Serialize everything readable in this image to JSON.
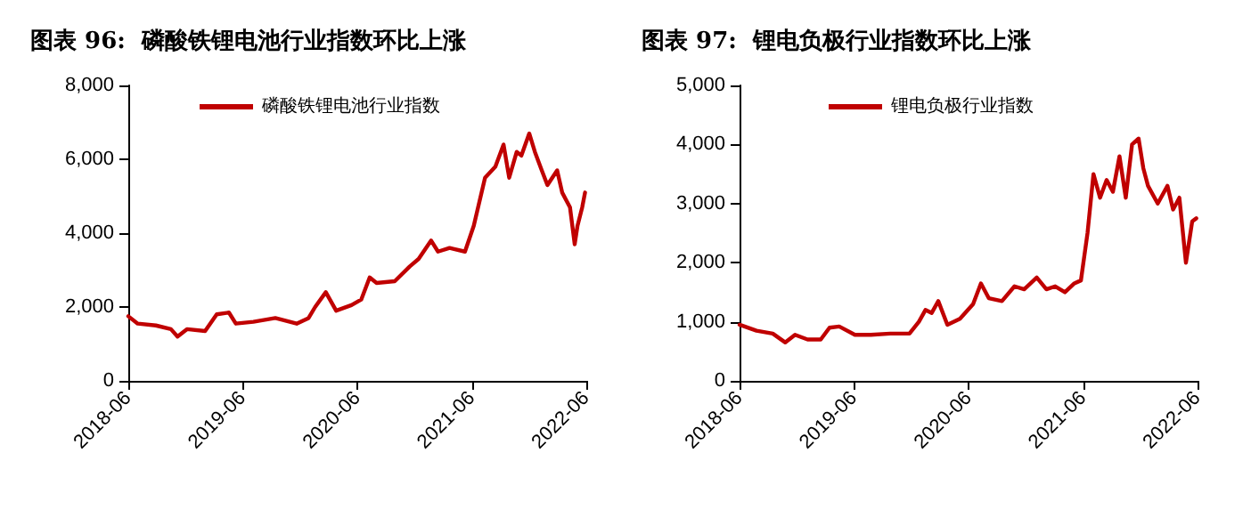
{
  "chart_data": [
    {
      "type": "line",
      "title": "图表 96:  磷酸铁锂电池行业指数环比上涨",
      "legend": "top",
      "grid": false,
      "marker": "none",
      "line_style": "solid",
      "xlim": [
        "2018-06",
        "2022-06"
      ],
      "xticks": [
        "2018-06",
        "2019-06",
        "2020-06",
        "2021-06",
        "2022-06"
      ],
      "ylim": [
        0,
        8000
      ],
      "yticks": [
        0,
        {
          "value": 2000,
          "label": "2,000"
        },
        {
          "value": 4000,
          "label": "4,000"
        },
        {
          "value": 6000,
          "label": "6,000"
        },
        {
          "value": 8000,
          "label": "8,000"
        }
      ],
      "series": [
        {
          "name": "磷酸铁锂电池行业指数",
          "color": "#c00000",
          "x": [
            "2018-06-01",
            "2018-07-01",
            "2018-08-28",
            "2018-10-15",
            "2018-11-05",
            "2018-12-05",
            "2019-02-01",
            "2019-03-10",
            "2019-04-18",
            "2019-05-10",
            "2019-07-05",
            "2019-09-13",
            "2019-11-20",
            "2019-12-28",
            "2020-01-18",
            "2020-02-21",
            "2020-03-25",
            "2020-05-13",
            "2020-06-13",
            "2020-07-10",
            "2020-08-01",
            "2020-09-28",
            "2020-11-15",
            "2020-12-13",
            "2021-01-22",
            "2021-02-13",
            "2021-03-22",
            "2021-05-10",
            "2021-06-07",
            "2021-07-13",
            "2021-08-15",
            "2021-09-10",
            "2021-09-28",
            "2021-10-22",
            "2021-11-06",
            "2021-12-01",
            "2021-12-19",
            "2022-01-10",
            "2022-01-28",
            "2022-02-28",
            "2022-03-16",
            "2022-04-10",
            "2022-04-25",
            "2022-05-04",
            "2022-05-19",
            "2022-05-28"
          ],
          "values": [
            1750,
            1550,
            1500,
            1400,
            1200,
            1400,
            1350,
            1800,
            1850,
            1550,
            1600,
            1700,
            1550,
            1700,
            2000,
            2400,
            1900,
            2050,
            2200,
            2800,
            2650,
            2700,
            3100,
            3300,
            3800,
            3500,
            3600,
            3500,
            4200,
            5500,
            5800,
            6400,
            5500,
            6200,
            6100,
            6700,
            6200,
            5700,
            5300,
            5700,
            5100,
            4700,
            3700,
            4200,
            4700,
            5100
          ]
        }
      ]
    },
    {
      "type": "line",
      "title": "图表 97:  锂电负极行业指数环比上涨",
      "legend": "top",
      "grid": false,
      "marker": "none",
      "line_style": "solid",
      "xlim": [
        "2018-06",
        "2022-06"
      ],
      "xticks": [
        "2018-06",
        "2019-06",
        "2020-06",
        "2021-06",
        "2022-06"
      ],
      "ylim": [
        0,
        5000
      ],
      "yticks": [
        0,
        {
          "value": 1000,
          "label": "1,000"
        },
        {
          "value": 2000,
          "label": "2,000"
        },
        {
          "value": 3000,
          "label": "3,000"
        },
        {
          "value": 4000,
          "label": "4,000"
        },
        {
          "value": 5000,
          "label": "5,000"
        }
      ],
      "series": [
        {
          "name": "锂电负极行业指数",
          "color": "#c00000",
          "x": [
            "2018-06-01",
            "2018-07-25",
            "2018-09-15",
            "2018-10-25",
            "2018-11-25",
            "2019-01-04",
            "2019-02-15",
            "2019-03-15",
            "2019-04-15",
            "2019-06-04",
            "2019-07-25",
            "2019-09-25",
            "2019-11-25",
            "2019-12-25",
            "2020-01-15",
            "2020-02-04",
            "2020-02-25",
            "2020-03-25",
            "2020-05-04",
            "2020-06-15",
            "2020-07-10",
            "2020-08-04",
            "2020-09-15",
            "2020-10-25",
            "2020-11-25",
            "2021-01-04",
            "2021-02-04",
            "2021-03-04",
            "2021-04-04",
            "2021-05-04",
            "2021-05-25",
            "2021-06-15",
            "2021-07-04",
            "2021-07-25",
            "2021-08-15",
            "2021-09-04",
            "2021-09-25",
            "2021-10-15",
            "2021-11-04",
            "2021-11-25",
            "2021-12-10",
            "2021-12-25",
            "2022-01-25",
            "2022-02-25",
            "2022-03-15",
            "2022-04-04",
            "2022-04-25",
            "2022-05-15",
            "2022-05-28"
          ],
          "values": [
            950,
            850,
            800,
            650,
            780,
            700,
            700,
            900,
            920,
            780,
            780,
            800,
            800,
            1000,
            1200,
            1150,
            1350,
            950,
            1050,
            1300,
            1650,
            1400,
            1350,
            1600,
            1550,
            1750,
            1550,
            1600,
            1500,
            1650,
            1700,
            2500,
            3500,
            3100,
            3400,
            3200,
            3800,
            3100,
            4000,
            4100,
            3600,
            3300,
            3000,
            3300,
            2900,
            3100,
            2000,
            2700,
            2750
          ]
        }
      ]
    }
  ]
}
